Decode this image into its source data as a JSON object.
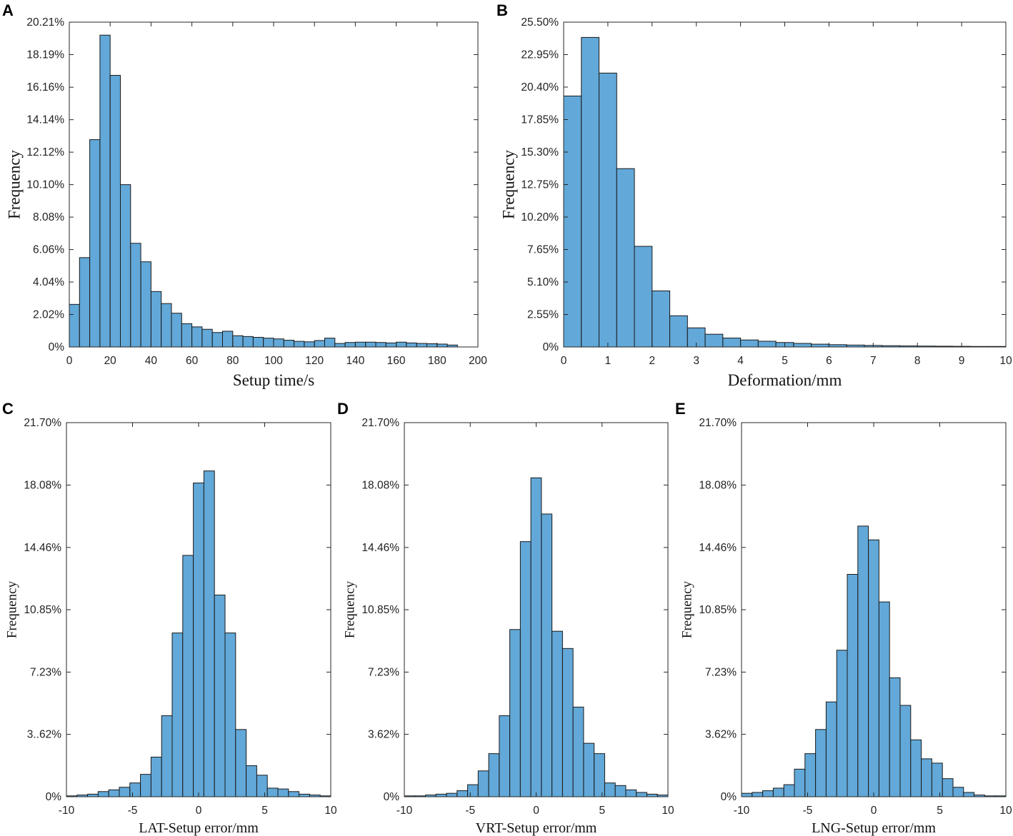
{
  "chart_data": [
    {
      "type": "bar",
      "panel_label": "A",
      "xlabel": "Setup time/s",
      "ylabel": "Frequency",
      "xlim": [
        0,
        200
      ],
      "ylim": [
        0,
        20.21
      ],
      "xticks": [
        0,
        20,
        40,
        60,
        80,
        100,
        120,
        140,
        160,
        180,
        200
      ],
      "xtick_labels": [
        "0",
        "20",
        "40",
        "60",
        "80",
        "100",
        "120",
        "140",
        "160",
        "180",
        "200"
      ],
      "yticks": [
        0,
        2.02,
        4.04,
        6.06,
        8.08,
        10.1,
        12.12,
        14.14,
        16.16,
        18.19,
        20.21
      ],
      "ytick_labels": [
        "0%",
        "2.02%",
        "4.04%",
        "6.06%",
        "8.08%",
        "10.10%",
        "12.12%",
        "14.14%",
        "16.16%",
        "18.19%",
        "20.21%"
      ],
      "bin_width": 5,
      "bin_edges": [
        0,
        5,
        10,
        15,
        20,
        25,
        30,
        35,
        40,
        45,
        50,
        55,
        60,
        65,
        70,
        75,
        80,
        85,
        90,
        95,
        100,
        105,
        110,
        115,
        120,
        125,
        130,
        135,
        140,
        145,
        150,
        155,
        160,
        165,
        170,
        175,
        180,
        185,
        190
      ],
      "values": [
        2.65,
        5.56,
        12.9,
        19.4,
        16.9,
        10.1,
        6.45,
        5.3,
        3.45,
        2.7,
        2.1,
        1.45,
        1.25,
        1.1,
        0.9,
        0.98,
        0.7,
        0.65,
        0.6,
        0.55,
        0.5,
        0.42,
        0.35,
        0.32,
        0.4,
        0.55,
        0.22,
        0.28,
        0.3,
        0.3,
        0.28,
        0.25,
        0.3,
        0.25,
        0.22,
        0.2,
        0.18,
        0.12
      ]
    },
    {
      "type": "bar",
      "panel_label": "B",
      "xlabel": "Deformation/mm",
      "ylabel": "Frequency",
      "xlim": [
        0,
        10
      ],
      "ylim": [
        0,
        25.5
      ],
      "xticks": [
        0,
        1,
        2,
        3,
        4,
        5,
        6,
        7,
        8,
        9,
        10
      ],
      "xtick_labels": [
        "0",
        "1",
        "2",
        "3",
        "4",
        "5",
        "6",
        "7",
        "8",
        "9",
        "10"
      ],
      "yticks": [
        0,
        2.55,
        5.1,
        7.65,
        10.2,
        12.75,
        15.3,
        17.85,
        20.4,
        22.95,
        25.5
      ],
      "ytick_labels": [
        "0%",
        "2.55%",
        "5.10%",
        "7.65%",
        "10.20%",
        "12.75%",
        "15.30%",
        "17.85%",
        "20.40%",
        "22.95%",
        "25.50%"
      ],
      "bin_width": 0.4,
      "bin_edges": [
        0,
        0.4,
        0.8,
        1.2,
        1.6,
        2.0,
        2.4,
        2.8,
        3.2,
        3.6,
        4.0,
        4.4,
        4.8,
        5.2,
        5.6,
        6.0,
        6.4,
        6.8,
        7.2,
        7.6,
        8.0,
        8.4,
        8.8,
        9.2,
        9.6,
        10.0
      ],
      "values": [
        19.7,
        24.3,
        21.5,
        14.0,
        7.9,
        4.4,
        2.45,
        1.5,
        1.0,
        0.7,
        0.55,
        0.45,
        0.35,
        0.28,
        0.22,
        0.18,
        0.15,
        0.12,
        0.1,
        0.08,
        0.07,
        0.06,
        0.05,
        0.04,
        0.04
      ]
    },
    {
      "type": "bar",
      "panel_label": "C",
      "xlabel": "LAT-Setup error/mm",
      "ylabel": "Frequency",
      "xlim": [
        -10,
        10
      ],
      "ylim": [
        0,
        21.7
      ],
      "xticks": [
        -10,
        -5,
        0,
        5,
        10
      ],
      "xtick_labels": [
        "-10",
        "-5",
        "0",
        "5",
        "10"
      ],
      "yticks": [
        0,
        3.62,
        7.23,
        10.85,
        14.46,
        18.08,
        21.7
      ],
      "ytick_labels": [
        "0%",
        "3..62%",
        "7.23%",
        "10.85%",
        "14.46%",
        "18.08%",
        "21.70%"
      ],
      "bin_width": 0.8,
      "bin_edges": [
        -10.0,
        -9.2,
        -8.4,
        -7.6,
        -6.8,
        -6.0,
        -5.2,
        -4.4,
        -3.6,
        -2.8,
        -2.0,
        -1.2,
        -0.4,
        0.4,
        1.2,
        2.0,
        2.8,
        3.6,
        4.4,
        5.2,
        6.0,
        6.8,
        7.6,
        8.4,
        9.2,
        10.0
      ],
      "values": [
        0.05,
        0.1,
        0.15,
        0.3,
        0.4,
        0.55,
        0.8,
        1.3,
        2.3,
        4.7,
        9.5,
        14.0,
        18.2,
        18.9,
        11.7,
        9.5,
        3.9,
        1.8,
        1.25,
        0.5,
        0.45,
        0.3,
        0.15,
        0.1,
        0.05
      ]
    },
    {
      "type": "bar",
      "panel_label": "D",
      "xlabel": "VRT-Setup error/mm",
      "ylabel": "Frequency",
      "xlim": [
        -10,
        10
      ],
      "ylim": [
        0,
        21.7
      ],
      "xticks": [
        -10,
        -5,
        0,
        5,
        10
      ],
      "xtick_labels": [
        "-10",
        "-5",
        "0",
        "5",
        "10"
      ],
      "yticks": [
        0,
        3.62,
        7.23,
        10.85,
        14.46,
        18.08,
        21.7
      ],
      "ytick_labels": [
        "0%",
        "3.62%",
        "7.23%",
        "10.85%",
        "14.46%",
        "18.08%",
        "21.70%"
      ],
      "bin_width": 0.8,
      "bin_edges": [
        -10.0,
        -9.2,
        -8.4,
        -7.6,
        -6.8,
        -6.0,
        -5.2,
        -4.4,
        -3.6,
        -2.8,
        -2.0,
        -1.2,
        -0.4,
        0.4,
        1.2,
        2.0,
        2.8,
        3.6,
        4.4,
        5.2,
        6.0,
        6.8,
        7.6,
        8.4,
        9.2,
        10.0
      ],
      "values": [
        0.05,
        0.05,
        0.1,
        0.15,
        0.2,
        0.35,
        0.7,
        1.5,
        2.5,
        4.7,
        9.7,
        14.8,
        18.5,
        16.4,
        9.6,
        8.6,
        5.2,
        3.1,
        2.5,
        0.8,
        0.65,
        0.4,
        0.25,
        0.15,
        0.1
      ]
    },
    {
      "type": "bar",
      "panel_label": "E",
      "xlabel": "LNG-Setup error/mm",
      "ylabel": "Frequency",
      "xlim": [
        -10,
        10
      ],
      "ylim": [
        0,
        21.7
      ],
      "xticks": [
        -10,
        -5,
        0,
        5,
        10
      ],
      "xtick_labels": [
        "-10",
        "-5",
        "0",
        "5",
        "10"
      ],
      "yticks": [
        0,
        3.62,
        7.23,
        10.85,
        14.46,
        18.08,
        21.7
      ],
      "ytick_labels": [
        "0%",
        "3.62%",
        "7.23%",
        "10.85%",
        "14.46%",
        "18.08%",
        "21.70%"
      ],
      "bin_width": 0.8,
      "bin_edges": [
        -10.0,
        -9.2,
        -8.4,
        -7.6,
        -6.8,
        -6.0,
        -5.2,
        -4.4,
        -3.6,
        -2.8,
        -2.0,
        -1.2,
        -0.4,
        0.4,
        1.2,
        2.0,
        2.8,
        3.6,
        4.4,
        5.2,
        6.0,
        6.8,
        7.6,
        8.4,
        9.2,
        10.0
      ],
      "values": [
        0.2,
        0.25,
        0.35,
        0.5,
        0.7,
        1.6,
        2.5,
        3.9,
        5.5,
        8.5,
        12.9,
        15.7,
        14.9,
        11.3,
        6.9,
        5.3,
        3.3,
        2.2,
        1.95,
        1.05,
        0.55,
        0.25,
        0.1,
        0.05,
        0.05
      ]
    }
  ]
}
